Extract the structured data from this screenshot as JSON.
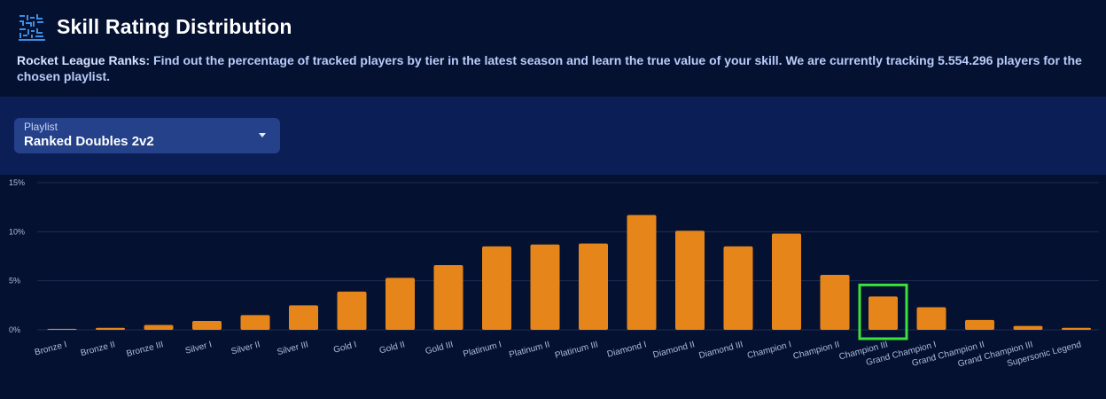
{
  "header": {
    "title": "Skill Rating Distribution",
    "description_highlight": "Rocket League Ranks",
    "description_rest": ": Find out the percentage of tracked players by tier in the latest season and learn the true value of your skill. We are currently tracking 5.554.296 players for the chosen playlist."
  },
  "playlist": {
    "label": "Playlist",
    "value": "Ranked Doubles 2v2"
  },
  "colors": {
    "bar": "#e6861a",
    "highlight_outline": "#3ae23a",
    "grid": "#1f2d55",
    "axis_text": "#aebddc"
  },
  "chart_data": {
    "type": "bar",
    "categories": [
      "Bronze I",
      "Bronze II",
      "Bronze III",
      "Silver I",
      "Silver II",
      "Silver III",
      "Gold I",
      "Gold II",
      "Gold III",
      "Platinum I",
      "Platinum II",
      "Platinum III",
      "Diamond I",
      "Diamond II",
      "Diamond III",
      "Champion I",
      "Champion II",
      "Champion III",
      "Grand Champion I",
      "Grand Champion II",
      "Grand Champion III",
      "Supersonic Legend"
    ],
    "values": [
      0.1,
      0.2,
      0.5,
      0.9,
      1.5,
      2.5,
      3.9,
      5.3,
      6.6,
      8.5,
      8.7,
      8.8,
      11.7,
      10.1,
      8.5,
      9.8,
      5.6,
      3.4,
      2.3,
      1.0,
      0.4,
      0.2
    ],
    "unit": "%",
    "ylim": [
      0,
      15
    ],
    "yticks": [
      0,
      5,
      10,
      15
    ],
    "ytick_labels": [
      "0%",
      "5%",
      "10%",
      "15%"
    ],
    "grid": true,
    "highlighted_category": "Champion III",
    "title": "",
    "xlabel": "",
    "ylabel": ""
  }
}
